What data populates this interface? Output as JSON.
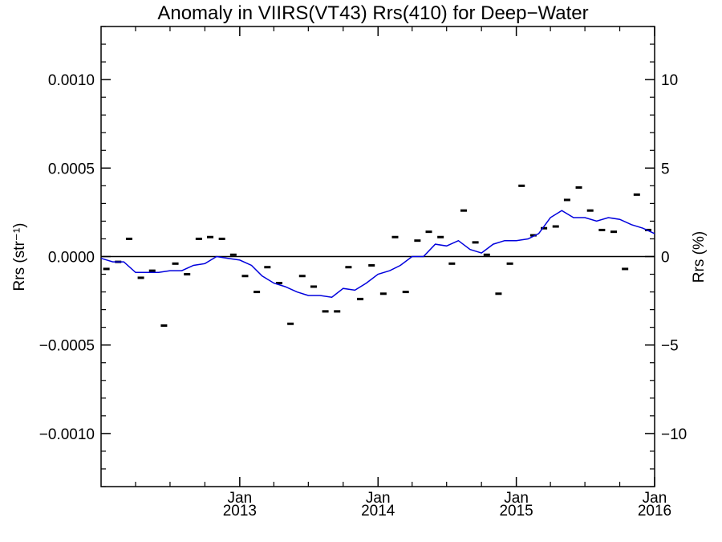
{
  "chart_data": {
    "type": "scatter",
    "title": "Anomaly in VIIRS(VT43) Rrs(410) for Deep−Water",
    "ylabel_left": "Rrs (str⁻¹)",
    "ylabel_right": "Rrs (%)",
    "xlim": [
      "2012-01-01",
      "2016-01-01"
    ],
    "ylim_left": [
      -0.0013,
      0.0013
    ],
    "ylim_right": [
      -13,
      13
    ],
    "x_ticks": [
      {
        "date": "2013-01-01",
        "month": "Jan",
        "year": "2013"
      },
      {
        "date": "2014-01-01",
        "month": "Jan",
        "year": "2014"
      },
      {
        "date": "2015-01-01",
        "month": "Jan",
        "year": "2015"
      },
      {
        "date": "2016-01-01",
        "month": "Jan",
        "year": "2016"
      }
    ],
    "y_ticks_left": [
      {
        "value": 0.001,
        "label": "0.0010"
      },
      {
        "value": 0.0005,
        "label": "0.0005"
      },
      {
        "value": 0.0,
        "label": "0.0000"
      },
      {
        "value": -0.0005,
        "label": "−0.0005"
      },
      {
        "value": -0.001,
        "label": "−0.0010"
      }
    ],
    "y_ticks_right": [
      {
        "value": 10,
        "label": "10"
      },
      {
        "value": 5,
        "label": "5"
      },
      {
        "value": 0,
        "label": "0"
      },
      {
        "value": -5,
        "label": "−5"
      },
      {
        "value": -10,
        "label": "−10"
      }
    ],
    "zero_line": 0,
    "colors": {
      "scatter": "#000000",
      "line": "#0000dd",
      "axes": "#000000"
    },
    "series": [
      {
        "type": "scatter",
        "marker": "dash",
        "x": [
          "2012-01-15",
          "2012-02-15",
          "2012-03-15",
          "2012-04-15",
          "2012-05-15",
          "2012-06-15",
          "2012-07-15",
          "2012-08-15",
          "2012-09-15",
          "2012-10-15",
          "2012-11-15",
          "2012-12-15",
          "2013-01-15",
          "2013-02-15",
          "2013-03-15",
          "2013-04-15",
          "2013-05-15",
          "2013-06-15",
          "2013-07-15",
          "2013-08-15",
          "2013-09-15",
          "2013-10-15",
          "2013-11-15",
          "2013-12-15",
          "2014-01-15",
          "2014-02-15",
          "2014-03-15",
          "2014-04-15",
          "2014-05-15",
          "2014-06-15",
          "2014-07-15",
          "2014-08-15",
          "2014-09-15",
          "2014-10-15",
          "2014-11-15",
          "2014-12-15",
          "2015-01-15",
          "2015-02-15",
          "2015-03-15",
          "2015-04-15",
          "2015-05-15",
          "2015-06-15",
          "2015-07-15",
          "2015-08-15",
          "2015-09-15",
          "2015-10-15",
          "2015-11-15",
          "2015-12-15"
        ],
        "y": [
          -7e-05,
          -3e-05,
          0.0001,
          -0.00012,
          -8e-05,
          -0.00039,
          -4e-05,
          -0.0001,
          0.0001,
          0.00011,
          0.0001,
          1e-05,
          -0.00011,
          -0.0002,
          -6e-05,
          -0.00015,
          -0.00038,
          -0.00011,
          -0.00017,
          -0.00031,
          -0.00031,
          -6e-05,
          -0.00024,
          -5e-05,
          -0.00021,
          0.00011,
          -0.0002,
          9e-05,
          0.00014,
          0.00011,
          -4e-05,
          0.00026,
          8e-05,
          1e-05,
          -0.00021,
          -4e-05,
          0.0004,
          0.00012,
          0.00016,
          0.00017,
          0.00032,
          0.00039,
          0.00026,
          0.00015,
          0.00014,
          -7e-05,
          0.00035,
          0.00015
        ]
      },
      {
        "type": "line",
        "x": [
          "2012-01-01",
          "2012-02-01",
          "2012-03-01",
          "2012-04-01",
          "2012-05-01",
          "2012-06-01",
          "2012-07-01",
          "2012-08-01",
          "2012-09-01",
          "2012-10-01",
          "2012-11-01",
          "2012-12-01",
          "2013-01-01",
          "2013-02-01",
          "2013-03-01",
          "2013-04-01",
          "2013-05-01",
          "2013-06-01",
          "2013-07-01",
          "2013-08-01",
          "2013-09-01",
          "2013-10-01",
          "2013-11-01",
          "2013-12-01",
          "2014-01-01",
          "2014-02-01",
          "2014-03-01",
          "2014-04-01",
          "2014-05-01",
          "2014-06-01",
          "2014-07-01",
          "2014-08-01",
          "2014-09-01",
          "2014-10-01",
          "2014-11-01",
          "2014-12-01",
          "2015-01-01",
          "2015-02-01",
          "2015-03-01",
          "2015-04-01",
          "2015-05-01",
          "2015-06-01",
          "2015-07-01",
          "2015-08-01",
          "2015-09-01",
          "2015-10-01",
          "2015-11-01",
          "2015-12-01",
          "2016-01-01"
        ],
        "y": [
          -1e-05,
          -3e-05,
          -3e-05,
          -9e-05,
          -9e-05,
          -9e-05,
          -8e-05,
          -8e-05,
          -5e-05,
          -4e-05,
          0.0,
          -1e-05,
          -2e-05,
          -5e-05,
          -0.00011,
          -0.00015,
          -0.00017,
          -0.0002,
          -0.00022,
          -0.00022,
          -0.00023,
          -0.00018,
          -0.00019,
          -0.00015,
          -0.0001,
          -8e-05,
          -5e-05,
          0.0,
          0.0,
          7e-05,
          6e-05,
          9e-05,
          4e-05,
          2e-05,
          7e-05,
          9e-05,
          9e-05,
          0.0001,
          0.00013,
          0.00022,
          0.00026,
          0.00022,
          0.00022,
          0.0002,
          0.00022,
          0.00021,
          0.00018,
          0.00016,
          0.00013
        ]
      }
    ]
  }
}
